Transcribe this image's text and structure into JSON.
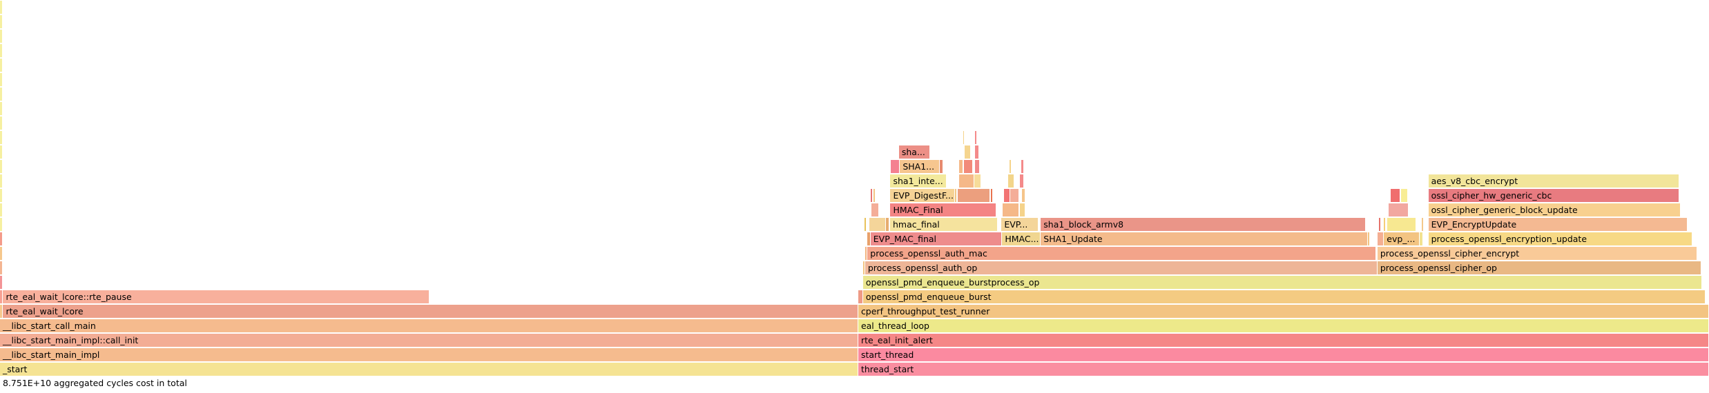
{
  "chart_data": {
    "type": "flamegraph",
    "total_label": "8.751E+10 aggregated cycles cost in total",
    "frames": [
      {
        "label": "_start",
        "depth": 0,
        "start": 0.0,
        "width": 0.5022,
        "color": "#f5e393"
      },
      {
        "label": "thread_start",
        "depth": 0,
        "start": 0.5022,
        "width": 0.4978,
        "color": "#fa8ea0"
      },
      {
        "label": "__libc_start_main_impl",
        "depth": 1,
        "start": 0.0,
        "width": 0.5022,
        "color": "#f5bb8e"
      },
      {
        "label": "start_thread",
        "depth": 1,
        "start": 0.5022,
        "width": 0.4978,
        "color": "#fb8aa0"
      },
      {
        "label": "__libc_start_main_impl::call_init",
        "depth": 2,
        "start": 0.0,
        "width": 0.5022,
        "color": "#f3ad95"
      },
      {
        "label": "rte_eal_init_alert",
        "depth": 2,
        "start": 0.5022,
        "width": 0.4978,
        "color": "#f58787"
      },
      {
        "label": "__libc_start_call_main",
        "depth": 3,
        "start": 0.0,
        "width": 0.5022,
        "color": "#f5bb8e"
      },
      {
        "label": "eal_thread_loop",
        "depth": 3,
        "start": 0.5022,
        "width": 0.4978,
        "color": "#ede98a"
      },
      {
        "label": "",
        "depth": 4,
        "start": 0.0,
        "width": 0.0018,
        "color": "#f6c88d"
      },
      {
        "label": "rte_eal_wait_lcore",
        "depth": 4,
        "start": 0.0018,
        "width": 0.5004,
        "color": "#eda18c"
      },
      {
        "label": "cperf_throughput_test_runner",
        "depth": 4,
        "start": 0.5022,
        "width": 0.4978,
        "color": "#f3c482"
      },
      {
        "label": "",
        "depth": 5,
        "start": 0.0,
        "width": 0.0018,
        "color": "#f6a092"
      },
      {
        "label": "rte_eal_wait_lcore::rte_pause",
        "depth": 5,
        "start": 0.0018,
        "width": 0.2497,
        "color": "#f8b09c"
      },
      {
        "label": "",
        "depth": 5,
        "start": 0.5022,
        "width": 0.0028,
        "color": "#ee9a86"
      },
      {
        "label": "openssl_pmd_enqueue_burst",
        "depth": 5,
        "start": 0.505,
        "width": 0.4931,
        "color": "#f4cb82"
      },
      {
        "label": "",
        "depth": 6,
        "start": 0.0,
        "width": 0.0018,
        "color": "#f39496"
      },
      {
        "label": "openssl_pmd_enqueue_burstprocess_op",
        "depth": 6,
        "start": 0.505,
        "width": 0.491,
        "color": "#ebe690"
      },
      {
        "label": "",
        "depth": 7,
        "start": 0.0,
        "width": 0.0018,
        "color": "#f4b591"
      },
      {
        "label": "",
        "depth": 7,
        "start": 0.505,
        "width": 0.0012,
        "color": "#f3c482"
      },
      {
        "label": "process_openssl_auth_op",
        "depth": 7,
        "start": 0.5062,
        "width": 0.2998,
        "color": "#eeb597"
      },
      {
        "label": "process_openssl_cipher_op",
        "depth": 7,
        "start": 0.806,
        "width": 0.1897,
        "color": "#e9b884"
      },
      {
        "label": "",
        "depth": 8,
        "start": 0.0,
        "width": 0.0018,
        "color": "#f6c88d"
      },
      {
        "label": "",
        "depth": 8,
        "start": 0.5062,
        "width": 0.0014,
        "color": "#f2b37e"
      },
      {
        "label": "process_openssl_auth_mac",
        "depth": 8,
        "start": 0.5076,
        "width": 0.2976,
        "color": "#f3a48a"
      },
      {
        "label": "process_openssl_cipher_encrypt",
        "depth": 8,
        "start": 0.806,
        "width": 0.1873,
        "color": "#f9ca98"
      },
      {
        "label": "",
        "depth": 9,
        "start": 0.0,
        "width": 0.0018,
        "color": "#f49b8a"
      },
      {
        "label": "",
        "depth": 9,
        "start": 0.5076,
        "width": 0.0018,
        "color": "#e8a06a"
      },
      {
        "label": "EVP_MAC_final",
        "depth": 9,
        "start": 0.5094,
        "width": 0.077,
        "color": "#ee8c8c"
      },
      {
        "label": "HMAC...",
        "depth": 9,
        "start": 0.5864,
        "width": 0.0226,
        "color": "#f0d690"
      },
      {
        "label": "SHA1_Update",
        "depth": 9,
        "start": 0.609,
        "width": 0.1915,
        "color": "#f4bb8b"
      },
      {
        "label": "",
        "depth": 9,
        "start": 0.8005,
        "width": 0.001,
        "color": "#f3c482"
      },
      {
        "label": "",
        "depth": 9,
        "start": 0.806,
        "width": 0.0038,
        "color": "#f4ae92"
      },
      {
        "label": "evp_...",
        "depth": 9,
        "start": 0.8098,
        "width": 0.021,
        "color": "#f3c482"
      },
      {
        "label": "",
        "depth": 9,
        "start": 0.8308,
        "width": 0.0018,
        "color": "#f2e28f"
      },
      {
        "label": "process_openssl_encryption_update",
        "depth": 9,
        "start": 0.8358,
        "width": 0.1545,
        "color": "#f7d985"
      },
      {
        "label": "",
        "depth": 10,
        "start": 0.0,
        "width": 0.0018,
        "color": "#f6f0a0"
      },
      {
        "label": "",
        "depth": 10,
        "start": 0.5058,
        "width": 0.0014,
        "color": "#e8c25a"
      },
      {
        "label": "",
        "depth": 10,
        "start": 0.5088,
        "width": 0.0096,
        "color": "#f4d59a"
      },
      {
        "label": "",
        "depth": 10,
        "start": 0.5184,
        "width": 0.0022,
        "color": "#e7ac6f"
      },
      {
        "label": "hmac_final",
        "depth": 10,
        "start": 0.5208,
        "width": 0.0632,
        "color": "#f5e39e"
      },
      {
        "label": "EVP...",
        "depth": 10,
        "start": 0.586,
        "width": 0.0216,
        "color": "#f4d59a"
      },
      {
        "label": "sha1_block_armv8",
        "depth": 10,
        "start": 0.609,
        "width": 0.19,
        "color": "#ea9588"
      },
      {
        "label": "",
        "depth": 10,
        "start": 0.807,
        "width": 0.001,
        "color": "#e5736b"
      },
      {
        "label": "",
        "depth": 10,
        "start": 0.8096,
        "width": 0.0014,
        "color": "#f5cd78"
      },
      {
        "label": "",
        "depth": 10,
        "start": 0.8116,
        "width": 0.0172,
        "color": "#f7e891"
      },
      {
        "label": "",
        "depth": 10,
        "start": 0.8318,
        "width": 0.0014,
        "color": "#f4c88b"
      },
      {
        "label": "EVP_EncryptUpdate",
        "depth": 10,
        "start": 0.8358,
        "width": 0.1518,
        "color": "#f4b992"
      },
      {
        "label": "",
        "depth": 11,
        "start": 0.0,
        "width": 0.0018,
        "color": "#f6f0a0"
      },
      {
        "label": "",
        "depth": 11,
        "start": 0.5098,
        "width": 0.0044,
        "color": "#f4ad98"
      },
      {
        "label": "HMAC_Final",
        "depth": 11,
        "start": 0.521,
        "width": 0.062,
        "color": "#f48484"
      },
      {
        "label": "",
        "depth": 11,
        "start": 0.5866,
        "width": 0.0098,
        "color": "#f5b888"
      },
      {
        "label": "",
        "depth": 11,
        "start": 0.5966,
        "width": 0.0036,
        "color": "#f5d38a"
      },
      {
        "label": "",
        "depth": 11,
        "start": 0.8126,
        "width": 0.0118,
        "color": "#f2a7a0"
      },
      {
        "label": "ossl_cipher_generic_block_update",
        "depth": 11,
        "start": 0.8358,
        "width": 0.1478,
        "color": "#f8d08f"
      },
      {
        "label": "",
        "depth": 12,
        "start": 0.0,
        "width": 0.0018,
        "color": "#f6f0a0"
      },
      {
        "label": "",
        "depth": 12,
        "start": 0.5094,
        "width": 0.0014,
        "color": "#e67373"
      },
      {
        "label": "",
        "depth": 12,
        "start": 0.5112,
        "width": 0.0012,
        "color": "#f3c482"
      },
      {
        "label": "EVP_DigestF...",
        "depth": 12,
        "start": 0.521,
        "width": 0.0376,
        "color": "#f6d395"
      },
      {
        "label": "",
        "depth": 12,
        "start": 0.5586,
        "width": 0.0014,
        "color": "#f3c482"
      },
      {
        "label": "",
        "depth": 12,
        "start": 0.5604,
        "width": 0.019,
        "color": "#ec9f7e"
      },
      {
        "label": "",
        "depth": 12,
        "start": 0.5798,
        "width": 0.0012,
        "color": "#e8734f"
      },
      {
        "label": "",
        "depth": 12,
        "start": 0.5874,
        "width": 0.0036,
        "color": "#f27474"
      },
      {
        "label": "",
        "depth": 12,
        "start": 0.5912,
        "width": 0.0052,
        "color": "#f4ad98"
      },
      {
        "label": "",
        "depth": 12,
        "start": 0.5978,
        "width": 0.0024,
        "color": "#f5c48a"
      },
      {
        "label": "",
        "depth": 12,
        "start": 0.8136,
        "width": 0.0058,
        "color": "#f06e6e"
      },
      {
        "label": "",
        "depth": 12,
        "start": 0.8196,
        "width": 0.0044,
        "color": "#f8ed95"
      },
      {
        "label": "ossl_cipher_hw_generic_cbc",
        "depth": 12,
        "start": 0.8358,
        "width": 0.1468,
        "color": "#e87b80"
      },
      {
        "label": "",
        "depth": 13,
        "start": 0.0,
        "width": 0.0018,
        "color": "#f6f0a0"
      },
      {
        "label": "sha1_inte...",
        "depth": 13,
        "start": 0.521,
        "width": 0.0328,
        "color": "#f3e99c"
      },
      {
        "label": "",
        "depth": 13,
        "start": 0.5612,
        "width": 0.0088,
        "color": "#f5b888"
      },
      {
        "label": "",
        "depth": 13,
        "start": 0.5702,
        "width": 0.004,
        "color": "#f7dc9a"
      },
      {
        "label": "",
        "depth": 13,
        "start": 0.59,
        "width": 0.0036,
        "color": "#f3d58a"
      },
      {
        "label": "",
        "depth": 13,
        "start": 0.5966,
        "width": 0.0026,
        "color": "#f48a8a"
      },
      {
        "label": "aes_v8_cbc_encrypt",
        "depth": 13,
        "start": 0.8358,
        "width": 0.1468,
        "color": "#f2e59a"
      },
      {
        "label": "",
        "depth": 14,
        "start": 0.0,
        "width": 0.0018,
        "color": "#f6f0a0"
      },
      {
        "label": "",
        "depth": 14,
        "start": 0.5214,
        "width": 0.0052,
        "color": "#f48190"
      },
      {
        "label": "SHA1...",
        "depth": 14,
        "start": 0.5266,
        "width": 0.0234,
        "color": "#f6c68f"
      },
      {
        "label": "",
        "depth": 14,
        "start": 0.55,
        "width": 0.002,
        "color": "#e78a6e"
      },
      {
        "label": "",
        "depth": 14,
        "start": 0.5612,
        "width": 0.0026,
        "color": "#f5b888"
      },
      {
        "label": "",
        "depth": 14,
        "start": 0.564,
        "width": 0.0052,
        "color": "#f28a7a"
      },
      {
        "label": "",
        "depth": 14,
        "start": 0.5706,
        "width": 0.0026,
        "color": "#f18a8a"
      },
      {
        "label": "",
        "depth": 14,
        "start": 0.5906,
        "width": 0.0012,
        "color": "#f5d38a"
      },
      {
        "label": "",
        "depth": 14,
        "start": 0.5976,
        "width": 0.0014,
        "color": "#f48a8a"
      },
      {
        "label": "",
        "depth": 15,
        "start": 0.0,
        "width": 0.0018,
        "color": "#f6f0a0"
      },
      {
        "label": "sha...",
        "depth": 15,
        "start": 0.526,
        "width": 0.0184,
        "color": "#ec8f86"
      },
      {
        "label": "",
        "depth": 15,
        "start": 0.5644,
        "width": 0.0036,
        "color": "#f5d58f"
      },
      {
        "label": "",
        "depth": 15,
        "start": 0.5706,
        "width": 0.0024,
        "color": "#f48a8a"
      },
      {
        "label": "",
        "depth": 16,
        "start": 0.0,
        "width": 0.0018,
        "color": "#f6f0a0"
      },
      {
        "label": "",
        "depth": 16,
        "start": 0.5636,
        "width": 0.001,
        "color": "#f5d38a"
      },
      {
        "label": "",
        "depth": 16,
        "start": 0.5706,
        "width": 0.0012,
        "color": "#f48a8a"
      },
      {
        "label": "",
        "depth": 17,
        "start": 0.0,
        "width": 0.0018,
        "color": "#f6f0a0"
      },
      {
        "label": "",
        "depth": 18,
        "start": 0.0,
        "width": 0.0018,
        "color": "#f6f0a0"
      },
      {
        "label": "",
        "depth": 19,
        "start": 0.0,
        "width": 0.0018,
        "color": "#f6f0a0"
      },
      {
        "label": "",
        "depth": 20,
        "start": 0.0,
        "width": 0.0018,
        "color": "#f6f0a0"
      },
      {
        "label": "",
        "depth": 21,
        "start": 0.0,
        "width": 0.0018,
        "color": "#f6f0a0"
      },
      {
        "label": "",
        "depth": 22,
        "start": 0.0,
        "width": 0.0018,
        "color": "#f6f0a0"
      },
      {
        "label": "",
        "depth": 23,
        "start": 0.0,
        "width": 0.0018,
        "color": "#f6f0a0"
      },
      {
        "label": "",
        "depth": 24,
        "start": 0.0,
        "width": 0.0018,
        "color": "#f6f0a0"
      },
      {
        "label": "",
        "depth": 25,
        "start": 0.0,
        "width": 0.0018,
        "color": "#f6f0a0"
      }
    ]
  }
}
